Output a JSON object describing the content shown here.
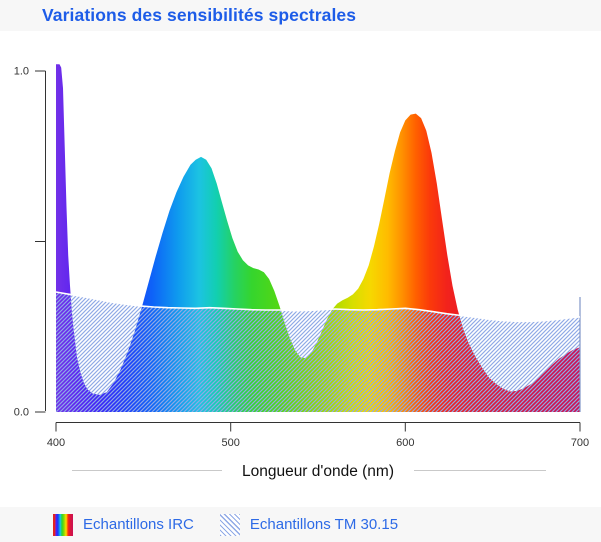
{
  "header": {
    "title": "Variations des sensibilités spectrales"
  },
  "colors": {
    "title": "#1d5ce8",
    "legend_text": "#2d6ae6",
    "hatch": "#8fa9e6",
    "tm_line": "#ffffff",
    "axis": "#333333",
    "header_bg": "#f7f7f7",
    "legend_bg": "#f7f7f7"
  },
  "legend": {
    "items": [
      {
        "label": "Echantillons IRC",
        "swatch": "spectrum"
      },
      {
        "label": "Echantillons TM 30.15",
        "swatch": "hatch"
      }
    ]
  },
  "chart_data": {
    "type": "area",
    "title": "Variations des sensibilités spectrales",
    "xlabel": "Longueur d'onde (nm)",
    "ylabel": "",
    "xlim": [
      400,
      700
    ],
    "ylim": [
      0,
      1.05
    ],
    "grid": false,
    "legend_position": "bottom",
    "x_ticks": [
      {
        "value": 400,
        "label": "400"
      },
      {
        "value": 500,
        "label": "500"
      },
      {
        "value": 600,
        "label": "600"
      },
      {
        "value": 700,
        "label": "700"
      }
    ],
    "y_ticks": [
      {
        "value": 1.0,
        "label": "1.0"
      },
      {
        "value": 0.5,
        "label": ""
      },
      {
        "value": 0.0,
        "label": "0.0"
      }
    ],
    "spectrum_stops": [
      [
        400,
        "#7231e8"
      ],
      [
        412,
        "#5a22f2"
      ],
      [
        425,
        "#3b22f8"
      ],
      [
        440,
        "#1e3bfa"
      ],
      [
        455,
        "#0e62f8"
      ],
      [
        470,
        "#0f9bee"
      ],
      [
        482,
        "#1cc3e2"
      ],
      [
        492,
        "#12cfb0"
      ],
      [
        502,
        "#25d264"
      ],
      [
        512,
        "#35d52e"
      ],
      [
        528,
        "#54d714"
      ],
      [
        545,
        "#85d806"
      ],
      [
        558,
        "#abdb00"
      ],
      [
        570,
        "#d8de00"
      ],
      [
        580,
        "#f6d800"
      ],
      [
        590,
        "#ffbb00"
      ],
      [
        598,
        "#ff9100"
      ],
      [
        606,
        "#ff6000"
      ],
      [
        614,
        "#fb3a0a"
      ],
      [
        624,
        "#f2221c"
      ],
      [
        640,
        "#e41a2e"
      ],
      [
        660,
        "#d81540"
      ],
      [
        680,
        "#d0124c"
      ],
      [
        700,
        "#cb1054"
      ]
    ],
    "series": [
      {
        "name": "Echantillons IRC",
        "fill": "spectral",
        "points": [
          [
            400,
            1.02
          ],
          [
            402,
            1.02
          ],
          [
            403,
            1.01
          ],
          [
            404,
            0.95
          ],
          [
            405,
            0.78
          ],
          [
            406,
            0.6
          ],
          [
            407,
            0.46
          ],
          [
            408,
            0.37
          ],
          [
            409,
            0.3
          ],
          [
            410,
            0.245
          ],
          [
            412,
            0.16
          ],
          [
            414,
            0.115
          ],
          [
            416,
            0.085
          ],
          [
            418,
            0.067
          ],
          [
            421,
            0.054
          ],
          [
            425,
            0.05
          ],
          [
            429,
            0.058
          ],
          [
            433,
            0.085
          ],
          [
            437,
            0.125
          ],
          [
            441,
            0.175
          ],
          [
            445,
            0.235
          ],
          [
            449,
            0.305
          ],
          [
            453,
            0.38
          ],
          [
            457,
            0.455
          ],
          [
            461,
            0.525
          ],
          [
            465,
            0.59
          ],
          [
            469,
            0.645
          ],
          [
            473,
            0.69
          ],
          [
            477,
            0.725
          ],
          [
            480,
            0.74
          ],
          [
            483,
            0.748
          ],
          [
            486,
            0.74
          ],
          [
            489,
            0.715
          ],
          [
            492,
            0.67
          ],
          [
            495,
            0.615
          ],
          [
            498,
            0.56
          ],
          [
            501,
            0.51
          ],
          [
            504,
            0.47
          ],
          [
            507,
            0.445
          ],
          [
            510,
            0.43
          ],
          [
            513,
            0.422
          ],
          [
            516,
            0.418
          ],
          [
            519,
            0.41
          ],
          [
            522,
            0.39
          ],
          [
            525,
            0.355
          ],
          [
            528,
            0.31
          ],
          [
            531,
            0.26
          ],
          [
            534,
            0.215
          ],
          [
            537,
            0.18
          ],
          [
            540,
            0.16
          ],
          [
            543,
            0.158
          ],
          [
            546,
            0.172
          ],
          [
            549,
            0.2
          ],
          [
            552,
            0.235
          ],
          [
            555,
            0.27
          ],
          [
            558,
            0.3
          ],
          [
            561,
            0.318
          ],
          [
            564,
            0.328
          ],
          [
            567,
            0.335
          ],
          [
            570,
            0.345
          ],
          [
            573,
            0.362
          ],
          [
            576,
            0.39
          ],
          [
            579,
            0.43
          ],
          [
            582,
            0.485
          ],
          [
            585,
            0.55
          ],
          [
            588,
            0.625
          ],
          [
            591,
            0.7
          ],
          [
            594,
            0.765
          ],
          [
            597,
            0.82
          ],
          [
            600,
            0.855
          ],
          [
            603,
            0.872
          ],
          [
            606,
            0.875
          ],
          [
            609,
            0.862
          ],
          [
            612,
            0.825
          ],
          [
            615,
            0.76
          ],
          [
            618,
            0.67
          ],
          [
            621,
            0.565
          ],
          [
            624,
            0.46
          ],
          [
            627,
            0.37
          ],
          [
            630,
            0.3
          ],
          [
            633,
            0.245
          ],
          [
            636,
            0.205
          ],
          [
            640,
            0.163
          ],
          [
            644,
            0.13
          ],
          [
            648,
            0.1
          ],
          [
            652,
            0.082
          ],
          [
            656,
            0.068
          ],
          [
            660,
            0.06
          ],
          [
            664,
            0.062
          ],
          [
            668,
            0.07
          ],
          [
            672,
            0.082
          ],
          [
            676,
            0.098
          ],
          [
            680,
            0.118
          ],
          [
            684,
            0.138
          ],
          [
            688,
            0.156
          ],
          [
            692,
            0.17
          ],
          [
            696,
            0.182
          ],
          [
            700,
            0.19
          ]
        ]
      },
      {
        "name": "Echantillons TM 30.15",
        "fill": "hatch",
        "line_color": "#ffffff",
        "points": [
          [
            400,
            0.352
          ],
          [
            408,
            0.345
          ],
          [
            416,
            0.338
          ],
          [
            424,
            0.33
          ],
          [
            432,
            0.322
          ],
          [
            440,
            0.316
          ],
          [
            448,
            0.311
          ],
          [
            456,
            0.308
          ],
          [
            464,
            0.306
          ],
          [
            472,
            0.305
          ],
          [
            480,
            0.304
          ],
          [
            488,
            0.306
          ],
          [
            496,
            0.304
          ],
          [
            504,
            0.302
          ],
          [
            512,
            0.3
          ],
          [
            520,
            0.299
          ],
          [
            528,
            0.299
          ],
          [
            536,
            0.297
          ],
          [
            544,
            0.298
          ],
          [
            552,
            0.3
          ],
          [
            560,
            0.302
          ],
          [
            568,
            0.3
          ],
          [
            576,
            0.299
          ],
          [
            584,
            0.3
          ],
          [
            592,
            0.302
          ],
          [
            600,
            0.304
          ],
          [
            608,
            0.3
          ],
          [
            616,
            0.294
          ],
          [
            624,
            0.288
          ],
          [
            632,
            0.283
          ],
          [
            640,
            0.278
          ],
          [
            648,
            0.272
          ],
          [
            656,
            0.268
          ],
          [
            664,
            0.266
          ],
          [
            672,
            0.266
          ],
          [
            680,
            0.268
          ],
          [
            688,
            0.272
          ],
          [
            696,
            0.277
          ],
          [
            700,
            0.279
          ]
        ]
      }
    ]
  }
}
